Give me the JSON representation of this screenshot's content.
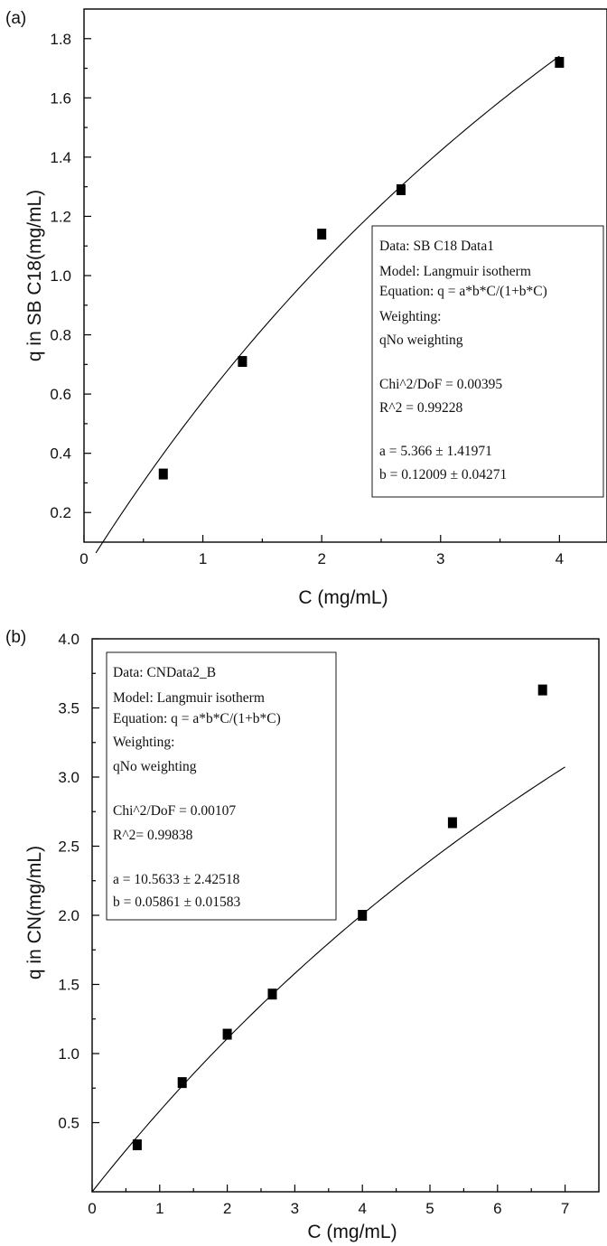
{
  "chart_data": [
    {
      "type": "scatter",
      "panel_label": "(a)",
      "xlabel": "C (mg/mL)",
      "ylabel": "q  in SB C18(mg/mL)",
      "xlim": [
        0,
        4.4
      ],
      "ylim": [
        0.1,
        1.9
      ],
      "xticks": [
        0,
        1,
        2,
        3,
        4
      ],
      "yticks": [
        0.2,
        0.4,
        0.6,
        0.8,
        1.0,
        1.2,
        1.4,
        1.6,
        1.8
      ],
      "xtick_labels": [
        "0",
        "1",
        "2",
        "3",
        "4"
      ],
      "ytick_labels": [
        "0.2",
        "0.4",
        "0.6",
        "0.8",
        "1.0",
        "1.2",
        "1.4",
        "1.6",
        "1.8"
      ],
      "series": [
        {
          "type": "scatter",
          "marker": "square",
          "x": [
            0.667,
            1.333,
            2.0,
            2.667,
            4.0
          ],
          "y": [
            0.33,
            0.71,
            1.14,
            1.29,
            1.72
          ]
        }
      ],
      "fit": {
        "model": "langmuir",
        "a": 5.366,
        "b": 0.12009,
        "x_range": [
          0.1,
          4.0
        ],
        "color": "#000000"
      },
      "legend_position": "right",
      "legend_lines": [
        "Data: SB C18 Data1",
        "Model: Langmuir isotherm",
        "Equation: q = a*b*C/(1+b*C)",
        "Weighting:",
        "qNo weighting",
        "",
        "Chi^2/DoF = 0.00395",
        "R^2 = 0.99228",
        "",
        "a = 5.366 ± 1.41971",
        "b = 0.12009 ± 0.04271"
      ]
    },
    {
      "type": "scatter",
      "panel_label": "(b)",
      "xlabel": "C (mg/mL)",
      "ylabel": "q in CN(mg/mL)",
      "xlim": [
        0,
        7.5
      ],
      "ylim": [
        0,
        4.0
      ],
      "xticks": [
        0,
        1,
        2,
        3,
        4,
        5,
        6,
        7
      ],
      "yticks": [
        0.5,
        1.0,
        1.5,
        2.0,
        2.5,
        3.0,
        3.5,
        4.0
      ],
      "xtick_labels": [
        "0",
        "1",
        "2",
        "3",
        "4",
        "5",
        "6",
        "7"
      ],
      "ytick_labels": [
        "0.5",
        "1.0",
        "1.5",
        "2.0",
        "2.5",
        "3.0",
        "3.5",
        "4.0"
      ],
      "series": [
        {
          "type": "scatter",
          "marker": "square",
          "x": [
            0.667,
            1.333,
            2.0,
            2.667,
            4.0,
            5.333,
            6.667
          ],
          "y": [
            0.34,
            0.79,
            1.14,
            1.43,
            2.0,
            2.67,
            3.63
          ]
        }
      ],
      "fit": {
        "model": "langmuir",
        "a": 10.5633,
        "b": 0.05861,
        "x_range": [
          0.0,
          7.0
        ],
        "color": "#000000"
      },
      "legend_position": "top-left",
      "legend_lines": [
        "Data: CNData2_B",
        "Model: Langmuir isotherm",
        "Equation: q = a*b*C/(1+b*C)",
        "Weighting:",
        "qNo weighting",
        "",
        "Chi^2/DoF = 0.00107",
        "R^2=  0.99838",
        "",
        "a = 10.5633 ± 2.42518",
        "b = 0.05861 ± 0.01583"
      ]
    }
  ]
}
